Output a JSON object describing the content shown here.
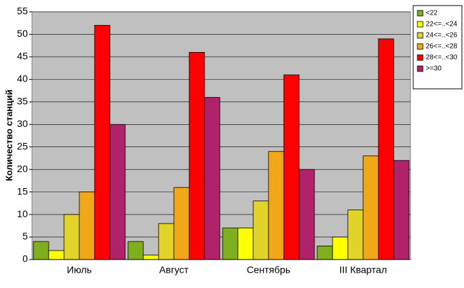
{
  "chart_data": {
    "type": "bar",
    "y_label": "Количество станций",
    "categories": [
      "Июль",
      "Август",
      "Сентябрь",
      "III Квартал"
    ],
    "series": [
      {
        "name": "<22",
        "color": "#7fae1f",
        "values": [
          4,
          4,
          7,
          3
        ]
      },
      {
        "name": "22<=..<24",
        "color": "#ffff00",
        "values": [
          2,
          1,
          7,
          5
        ]
      },
      {
        "name": "24<=..<26",
        "color": "#e2d32a",
        "values": [
          10,
          8,
          13,
          11
        ]
      },
      {
        "name": "26<=..<28",
        "color": "#f0a818",
        "values": [
          15,
          16,
          24,
          23
        ]
      },
      {
        "name": "28<=..<30",
        "color": "#ff0000",
        "values": [
          52,
          46,
          41,
          49
        ]
      },
      {
        "name": ">=30",
        "color": "#b0226a",
        "values": [
          30,
          36,
          20,
          22
        ]
      }
    ],
    "ylim": [
      0,
      55
    ],
    "yticks": [
      0,
      5,
      10,
      15,
      20,
      25,
      30,
      35,
      40,
      45,
      50,
      55
    ],
    "grid": true,
    "legend": "top-right"
  }
}
